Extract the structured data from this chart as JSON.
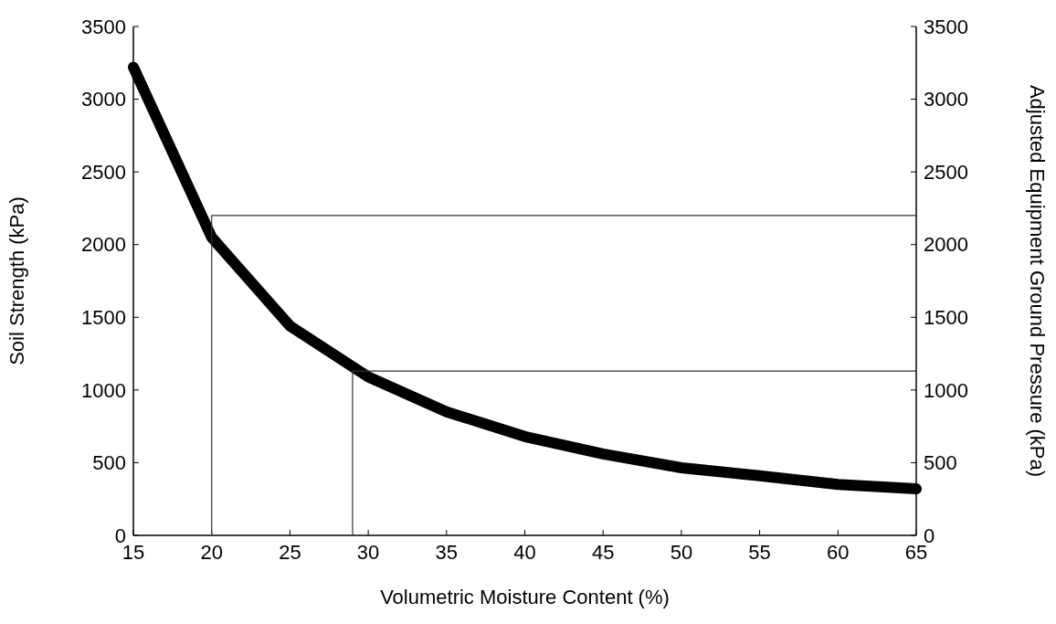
{
  "chart_data": {
    "type": "line",
    "xlabel": "Volumetric Moisture Content (%)",
    "ylabel": "Soil Strength (kPa)",
    "y2label": "Adjusted Equipment Ground Pressure (kPa)",
    "x": [
      15,
      20,
      25,
      30,
      35,
      40,
      45,
      50,
      55,
      60,
      65
    ],
    "series": [
      {
        "color": "#000000",
        "values": [
          3220,
          2050,
          1440,
          1090,
          850,
          680,
          560,
          465,
          410,
          350,
          320
        ]
      },
      {
        "color": "#333333",
        "x": [
          20,
          20,
          65
        ],
        "values": [
          0,
          2200,
          2200
        ]
      },
      {
        "color": "#333333",
        "x": [
          29,
          29,
          65
        ],
        "values": [
          0,
          1130,
          1130
        ]
      }
    ],
    "xlim": [
      15,
      65
    ],
    "xticks": [
      15,
      20,
      25,
      30,
      35,
      40,
      45,
      50,
      55,
      60,
      65
    ],
    "ylim": [
      0,
      3500
    ],
    "yticks": [
      0,
      500,
      1000,
      1500,
      2000,
      2500,
      3000,
      3500
    ],
    "y2lim": [
      0,
      3500
    ],
    "y2ticks": [
      0,
      500,
      1000,
      1500,
      2000,
      2500,
      3000,
      3500
    ],
    "grid": false,
    "marker": "none",
    "line_style": "solid"
  }
}
